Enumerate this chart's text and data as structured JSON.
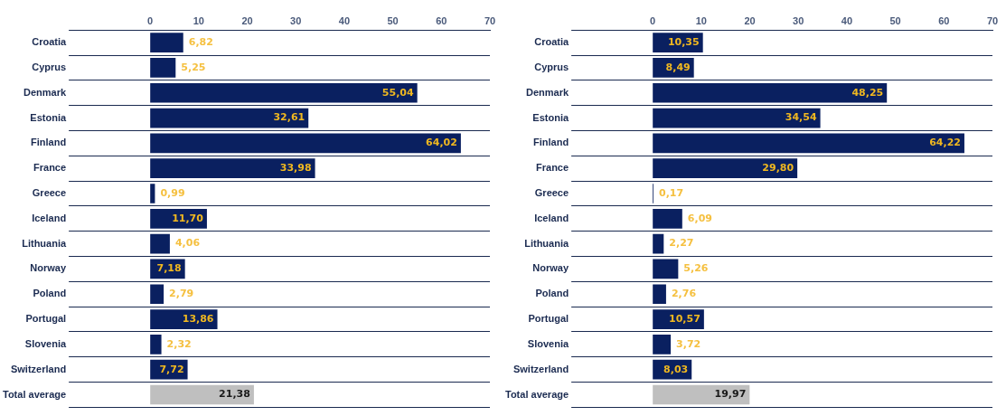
{
  "chart_data": [
    {
      "type": "bar",
      "orientation": "horizontal",
      "categories": [
        "Croatia",
        "Cyprus",
        "Denmark",
        "Estonia",
        "Finland",
        "France",
        "Greece",
        "Iceland",
        "Lithuania",
        "Norway",
        "Poland",
        "Portugal",
        "Slovenia",
        "Switzerland",
        "Total average"
      ],
      "values": [
        6.82,
        5.25,
        55.04,
        32.61,
        64.02,
        33.98,
        0.99,
        11.7,
        4.06,
        7.18,
        2.79,
        13.86,
        2.32,
        7.72,
        21.38
      ],
      "value_labels": [
        "6,82",
        "5,25",
        "55,04",
        "32,61",
        "64,02",
        "33,98",
        "0,99",
        "11,70",
        "4,06",
        "7,18",
        "2,79",
        "13,86",
        "2,32",
        "7,72",
        "21,38"
      ],
      "colors": [
        "#0a2060",
        "#0a2060",
        "#0a2060",
        "#0a2060",
        "#0a2060",
        "#0a2060",
        "#0a2060",
        "#0a2060",
        "#0a2060",
        "#0a2060",
        "#0a2060",
        "#0a2060",
        "#0a2060",
        "#0a2060",
        "#bfbfbf"
      ],
      "x2lim": [
        0,
        70
      ],
      "x2ticks": [
        0,
        10,
        20,
        30,
        40,
        50,
        60,
        70
      ],
      "grid": "y",
      "legend": false
    },
    {
      "type": "bar",
      "orientation": "horizontal",
      "categories": [
        "Croatia",
        "Cyprus",
        "Denmark",
        "Estonia",
        "Finland",
        "France",
        "Greece",
        "Iceland",
        "Lithuania",
        "Norway",
        "Poland",
        "Portugal",
        "Slovenia",
        "Switzerland",
        "Total average"
      ],
      "values": [
        10.35,
        8.49,
        48.25,
        34.54,
        64.22,
        29.8,
        0.17,
        6.09,
        2.27,
        5.26,
        2.76,
        10.57,
        3.72,
        8.03,
        19.97
      ],
      "value_labels": [
        "10,35",
        "8,49",
        "48,25",
        "34,54",
        "64,22",
        "29,80",
        "0,17",
        "6,09",
        "2,27",
        "5,26",
        "2,76",
        "10,57",
        "3,72",
        "8,03",
        "19,97"
      ],
      "colors": [
        "#0a2060",
        "#0a2060",
        "#0a2060",
        "#0a2060",
        "#0a2060",
        "#0a2060",
        "#0a2060",
        "#0a2060",
        "#0a2060",
        "#0a2060",
        "#0a2060",
        "#0a2060",
        "#0a2060",
        "#0a2060",
        "#bfbfbf"
      ],
      "x2lim": [
        0,
        70
      ],
      "x2ticks": [
        0,
        10,
        20,
        30,
        40,
        50,
        60,
        70
      ],
      "grid": "y",
      "legend": false
    }
  ]
}
